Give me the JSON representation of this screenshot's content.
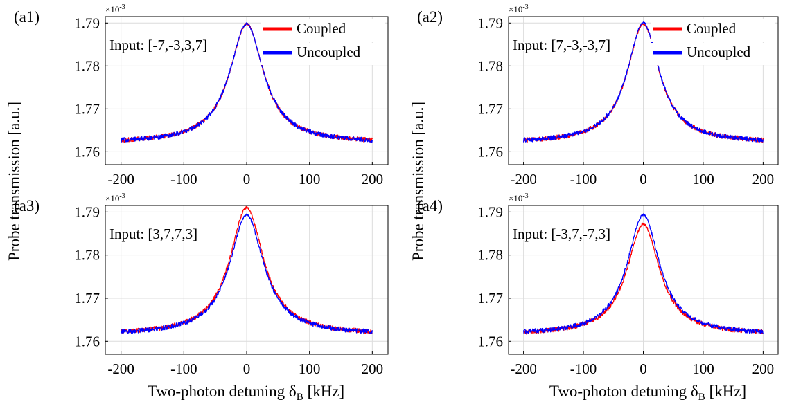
{
  "figure": {
    "ylabel": "Probe transmission [a.u.]",
    "xlabel_main": "Two-photon detuning δ",
    "xlabel_sub": "B",
    "xlabel_unit": " [kHz]",
    "exponent_label": "×10",
    "exponent_power": "-3"
  },
  "colors": {
    "coupled": "#ff0000",
    "uncoupled": "#0000ff",
    "grid": "#dcdcdc",
    "axis": "#000000"
  },
  "chart_data": [
    {
      "type": "line",
      "panel_label": "(a1)",
      "annotation": "Input: [-7,-3,3,7]",
      "legend": [
        "Coupled",
        "Uncoupled"
      ],
      "legend_position": "top-right",
      "xlim": [
        -225,
        225
      ],
      "ylim": [
        1.757,
        1.7915
      ],
      "x_ticks": [
        "-200",
        "-100",
        "0",
        "100",
        "200"
      ],
      "y_ticks": [
        "1.76",
        "1.77",
        "1.78",
        "1.79"
      ],
      "grid": true,
      "series": [
        {
          "name": "Coupled",
          "color": "#ff0000",
          "baseline": 1.762,
          "peak": 1.7898,
          "x": [
            -200,
            200
          ]
        },
        {
          "name": "Uncoupled",
          "color": "#0000ff",
          "baseline": 1.762,
          "peak": 1.7898,
          "x": [
            -200,
            200
          ]
        }
      ]
    },
    {
      "type": "line",
      "panel_label": "(a2)",
      "annotation": "Input: [7,-3,-3,7]",
      "legend": [
        "Coupled",
        "Uncoupled"
      ],
      "legend_position": "top-right",
      "xlim": [
        -225,
        225
      ],
      "ylim": [
        1.757,
        1.7915
      ],
      "x_ticks": [
        "-200",
        "-100",
        "0",
        "100",
        "200"
      ],
      "y_ticks": [
        "1.76",
        "1.77",
        "1.78",
        "1.79"
      ],
      "grid": true,
      "series": [
        {
          "name": "Coupled",
          "color": "#ff0000",
          "baseline": 1.762,
          "peak": 1.7898,
          "x": [
            -200,
            200
          ]
        },
        {
          "name": "Uncoupled",
          "color": "#0000ff",
          "baseline": 1.762,
          "peak": 1.79,
          "x": [
            -200,
            200
          ]
        }
      ]
    },
    {
      "type": "line",
      "panel_label": "(a3)",
      "annotation": "Input: [3,7,7,3]",
      "legend": [],
      "xlim": [
        -225,
        225
      ],
      "ylim": [
        1.757,
        1.7915
      ],
      "x_ticks": [
        "-200",
        "-100",
        "0",
        "100",
        "200"
      ],
      "y_ticks": [
        "1.76",
        "1.77",
        "1.78",
        "1.79"
      ],
      "grid": true,
      "series": [
        {
          "name": "Coupled",
          "color": "#ff0000",
          "baseline": 1.7615,
          "peak": 1.791,
          "x": [
            -200,
            200
          ]
        },
        {
          "name": "Uncoupled",
          "color": "#0000ff",
          "baseline": 1.7615,
          "peak": 1.7893,
          "x": [
            -200,
            200
          ]
        }
      ]
    },
    {
      "type": "line",
      "panel_label": "(a4)",
      "annotation": "Input: [-3,7,-7,3]",
      "legend": [],
      "xlim": [
        -225,
        225
      ],
      "ylim": [
        1.757,
        1.7915
      ],
      "x_ticks": [
        "-200",
        "-100",
        "0",
        "100",
        "200"
      ],
      "y_ticks": [
        "1.76",
        "1.77",
        "1.78",
        "1.79"
      ],
      "grid": true,
      "series": [
        {
          "name": "Coupled",
          "color": "#ff0000",
          "baseline": 1.7615,
          "peak": 1.7872,
          "x": [
            -200,
            200
          ]
        },
        {
          "name": "Uncoupled",
          "color": "#0000ff",
          "baseline": 1.7615,
          "peak": 1.7893,
          "x": [
            -200,
            200
          ]
        }
      ]
    }
  ]
}
